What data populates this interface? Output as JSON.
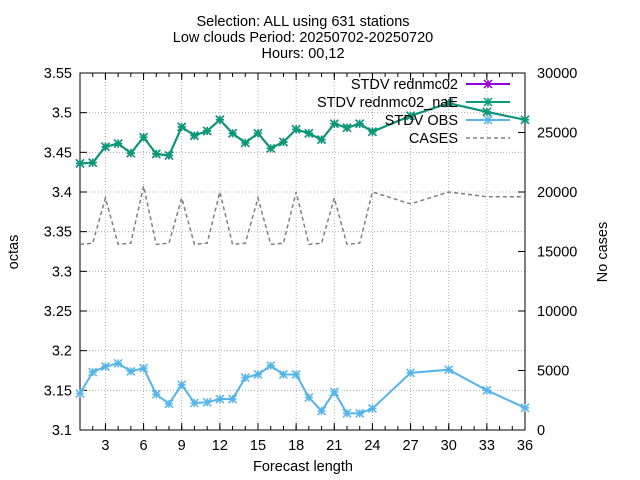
{
  "chart_data": {
    "type": "line",
    "title_lines": [
      "Selection: ALL using   631 stations",
      "Low clouds   Period: 20250702-20250720",
      "Hours: 00,12"
    ],
    "xlabel": "Forecast length",
    "ylabel": "octas",
    "y2label": "No cases",
    "xlim": [
      1,
      36
    ],
    "ylim": [
      3.1,
      3.55
    ],
    "y2lim": [
      0,
      30000
    ],
    "xticks": [
      "3",
      "6",
      "9",
      "12",
      "15",
      "18",
      "21",
      "24",
      "27",
      "30",
      "33",
      "36"
    ],
    "yticks": [
      "3.1",
      "3.15",
      "3.2",
      "3.25",
      "3.3",
      "3.35",
      "3.4",
      "3.45",
      "3.5",
      "3.55"
    ],
    "y2ticks": [
      "0",
      "5000",
      "10000",
      "15000",
      "20000",
      "25000",
      "30000"
    ],
    "grid": true,
    "legend_position": "top-right",
    "colors": {
      "rednmc02": "#9400d3",
      "rednmc02_naE": "#009e73",
      "obs": "#56b4e9",
      "cases": "#808080"
    },
    "x": [
      1,
      2,
      3,
      4,
      5,
      6,
      7,
      8,
      9,
      10,
      11,
      12,
      13,
      14,
      15,
      16,
      17,
      18,
      19,
      20,
      21,
      22,
      23,
      24,
      27,
      30,
      33,
      36
    ],
    "series": [
      {
        "name": "STDV rednmc02",
        "values": [
          3.436,
          3.437,
          3.457,
          3.461,
          3.449,
          3.469,
          3.448,
          3.446,
          3.482,
          3.471,
          3.477,
          3.491,
          3.474,
          3.462,
          3.474,
          3.455,
          3.463,
          3.479,
          3.474,
          3.466,
          3.486,
          3.481,
          3.486,
          3.476,
          3.496,
          3.512,
          3.501,
          3.491
        ]
      },
      {
        "name": "STDV rednmc02_naE",
        "values": [
          3.436,
          3.437,
          3.457,
          3.461,
          3.449,
          3.469,
          3.448,
          3.446,
          3.482,
          3.471,
          3.477,
          3.491,
          3.474,
          3.462,
          3.474,
          3.455,
          3.463,
          3.479,
          3.474,
          3.466,
          3.486,
          3.481,
          3.486,
          3.476,
          3.496,
          3.512,
          3.501,
          3.491
        ]
      },
      {
        "name": "STDV OBS",
        "values": [
          3.146,
          3.173,
          3.18,
          3.184,
          3.174,
          3.178,
          3.145,
          3.133,
          3.157,
          3.134,
          3.135,
          3.139,
          3.139,
          3.166,
          3.17,
          3.181,
          3.17,
          3.17,
          3.141,
          3.124,
          3.148,
          3.121,
          3.121,
          3.127,
          3.172,
          3.176,
          3.15,
          3.128
        ]
      },
      {
        "name": "CASES",
        "values": [
          15600,
          15700,
          19500,
          15600,
          15700,
          20500,
          15600,
          15700,
          19500,
          15600,
          15700,
          20000,
          15600,
          15700,
          19500,
          15600,
          15700,
          20000,
          15600,
          15700,
          19500,
          15600,
          15700,
          20000,
          19000,
          20000,
          19600,
          19600
        ]
      }
    ]
  }
}
